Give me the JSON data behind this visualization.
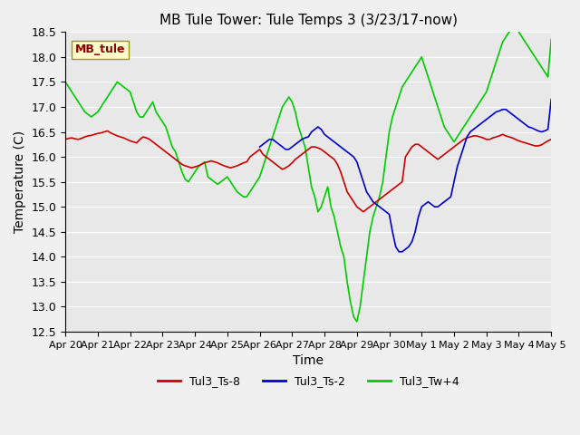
{
  "title": "MB Tule Tower: Tule Temps 3 (3/23/17-now)",
  "xlabel": "Time",
  "ylabel": "Temperature (C)",
  "ylim": [
    12.5,
    18.5
  ],
  "yticks": [
    12.5,
    13.0,
    13.5,
    14.0,
    14.5,
    15.0,
    15.5,
    16.0,
    16.5,
    17.0,
    17.5,
    18.0,
    18.5
  ],
  "xtick_labels": [
    "Apr 20",
    "Apr 21",
    "Apr 22",
    "Apr 23",
    "Apr 24",
    "Apr 25",
    "Apr 26",
    "Apr 27",
    "Apr 28",
    "Apr 29",
    "Apr 30",
    "May 1",
    "May 2",
    "May 3",
    "May 4",
    "May 5"
  ],
  "legend_label": "MB_tule",
  "background_color": "#e8e8e8",
  "plot_bg": "#e8e8e8",
  "line1_color": "#cc0000",
  "line2_color": "#0000cc",
  "line3_color": "#00cc00",
  "line1_label": "Tul3_Ts-8",
  "line2_label": "Tul3_Ts-2",
  "line3_label": "Tul3_Tw+4",
  "line1_x": [
    0,
    0.1,
    0.2,
    0.3,
    0.4,
    0.5,
    0.6,
    0.7,
    0.8,
    0.9,
    1.0,
    1.1,
    1.2,
    1.3,
    1.4,
    1.5,
    1.6,
    1.7,
    1.8,
    1.9,
    2.0,
    2.1,
    2.2,
    2.3,
    2.4,
    2.5,
    2.6,
    2.7,
    2.8,
    2.9,
    3.0,
    3.1,
    3.2,
    3.3,
    3.4,
    3.5,
    3.6,
    3.7,
    3.8,
    3.9,
    4.0,
    4.1,
    4.2,
    4.3,
    4.4,
    4.5,
    4.6,
    4.7,
    4.8,
    4.9,
    5.0,
    5.1,
    5.2,
    5.3,
    5.4,
    5.5,
    5.6,
    5.7,
    5.8,
    5.9,
    6.0,
    6.1,
    6.2,
    6.3,
    6.4,
    6.5,
    6.6,
    6.7,
    6.8,
    6.9,
    7.0,
    7.1,
    7.2,
    7.3,
    7.4,
    7.5,
    7.6,
    7.7,
    7.8,
    7.9,
    8.0,
    8.1,
    8.2,
    8.3,
    8.4,
    8.5,
    8.6,
    8.7,
    8.8,
    8.9,
    9.0,
    9.1,
    9.2,
    9.3,
    9.4,
    9.5,
    9.6,
    9.7,
    9.8,
    9.9,
    10.0,
    10.1,
    10.2,
    10.3,
    10.4,
    10.5,
    10.6,
    10.7,
    10.8,
    10.9,
    11.0,
    11.1,
    11.2,
    11.3,
    11.4,
    11.5,
    11.6,
    11.7,
    11.8,
    11.9,
    12.0,
    12.1,
    12.2,
    12.3,
    12.4,
    12.5,
    12.6,
    12.7,
    12.8,
    12.9,
    13.0,
    13.1,
    13.2,
    13.3,
    13.4,
    13.5,
    13.6,
    13.7,
    13.8,
    13.9,
    14.0,
    14.1,
    14.2,
    14.3,
    14.4,
    14.5,
    14.6,
    14.7,
    14.8,
    14.9,
    15.0
  ],
  "line1_y": [
    16.35,
    16.37,
    16.38,
    16.36,
    16.35,
    16.37,
    16.4,
    16.42,
    16.43,
    16.45,
    16.47,
    16.48,
    16.5,
    16.52,
    16.48,
    16.45,
    16.42,
    16.4,
    16.38,
    16.35,
    16.32,
    16.3,
    16.28,
    16.35,
    16.4,
    16.38,
    16.35,
    16.3,
    16.25,
    16.2,
    16.15,
    16.1,
    16.05,
    16.0,
    15.95,
    15.9,
    15.85,
    15.82,
    15.8,
    15.78,
    15.8,
    15.82,
    15.85,
    15.88,
    15.9,
    15.92,
    15.9,
    15.88,
    15.85,
    15.82,
    15.8,
    15.78,
    15.8,
    15.82,
    15.85,
    15.88,
    15.9,
    16.0,
    16.05,
    16.1,
    16.15,
    16.05,
    16.0,
    15.95,
    15.9,
    15.85,
    15.8,
    15.75,
    15.78,
    15.82,
    15.88,
    15.95,
    16.0,
    16.05,
    16.1,
    16.15,
    16.2,
    16.2,
    16.18,
    16.15,
    16.1,
    16.05,
    16.0,
    15.95,
    15.85,
    15.7,
    15.5,
    15.3,
    15.2,
    15.1,
    15.0,
    14.95,
    14.9,
    14.95,
    15.0,
    15.05,
    15.1,
    15.15,
    15.2,
    15.25,
    15.3,
    15.35,
    15.4,
    15.45,
    15.5,
    16.0,
    16.1,
    16.2,
    16.25,
    16.25,
    16.2,
    16.15,
    16.1,
    16.05,
    16.0,
    15.95,
    16.0,
    16.05,
    16.1,
    16.15,
    16.2,
    16.25,
    16.3,
    16.35,
    16.38,
    16.4,
    16.42,
    16.42,
    16.4,
    16.38,
    16.35,
    16.35,
    16.38,
    16.4,
    16.42,
    16.45,
    16.42,
    16.4,
    16.38,
    16.35,
    16.32,
    16.3,
    16.28,
    16.26,
    16.24,
    16.22,
    16.22,
    16.24,
    16.28,
    16.32,
    16.35
  ],
  "line2_x": [
    6.0,
    6.1,
    6.2,
    6.3,
    6.4,
    6.5,
    6.6,
    6.7,
    6.8,
    6.9,
    7.0,
    7.1,
    7.2,
    7.3,
    7.4,
    7.5,
    7.6,
    7.7,
    7.8,
    7.9,
    8.0,
    8.1,
    8.2,
    8.3,
    8.4,
    8.5,
    8.6,
    8.7,
    8.8,
    8.9,
    9.0,
    9.1,
    9.2,
    9.3,
    9.4,
    9.5,
    9.6,
    9.7,
    9.8,
    9.9,
    10.0,
    10.1,
    10.2,
    10.3,
    10.4,
    10.5,
    10.6,
    10.7,
    10.8,
    10.9,
    11.0,
    11.1,
    11.2,
    11.3,
    11.4,
    11.5,
    11.6,
    11.7,
    11.8,
    11.9,
    12.0,
    12.1,
    12.2,
    12.3,
    12.4,
    12.5,
    12.6,
    12.7,
    12.8,
    12.9,
    13.0,
    13.1,
    13.2,
    13.3,
    13.4,
    13.5,
    13.6,
    13.7,
    13.8,
    13.9,
    14.0,
    14.1,
    14.2,
    14.3,
    14.4,
    14.5,
    14.6,
    14.7,
    14.8,
    14.9,
    15.0
  ],
  "line2_y": [
    16.2,
    16.25,
    16.3,
    16.35,
    16.35,
    16.3,
    16.25,
    16.2,
    16.15,
    16.15,
    16.2,
    16.25,
    16.3,
    16.35,
    16.38,
    16.4,
    16.5,
    16.55,
    16.6,
    16.55,
    16.45,
    16.4,
    16.35,
    16.3,
    16.25,
    16.2,
    16.15,
    16.1,
    16.05,
    16.0,
    15.9,
    15.7,
    15.5,
    15.3,
    15.2,
    15.1,
    15.05,
    15.0,
    14.95,
    14.9,
    14.85,
    14.5,
    14.2,
    14.1,
    14.1,
    14.15,
    14.2,
    14.3,
    14.5,
    14.8,
    15.0,
    15.05,
    15.1,
    15.05,
    15.0,
    15.0,
    15.05,
    15.1,
    15.15,
    15.2,
    15.5,
    15.8,
    16.0,
    16.2,
    16.4,
    16.5,
    16.55,
    16.6,
    16.65,
    16.7,
    16.75,
    16.8,
    16.85,
    16.9,
    16.92,
    16.95,
    16.95,
    16.9,
    16.85,
    16.8,
    16.75,
    16.7,
    16.65,
    16.6,
    16.58,
    16.55,
    16.52,
    16.5,
    16.52,
    16.55,
    17.15
  ],
  "line3_x": [
    0,
    0.1,
    0.2,
    0.3,
    0.4,
    0.5,
    0.6,
    0.7,
    0.8,
    0.9,
    1.0,
    1.1,
    1.2,
    1.3,
    1.4,
    1.5,
    1.6,
    1.7,
    1.8,
    1.9,
    2.0,
    2.1,
    2.2,
    2.3,
    2.4,
    2.5,
    2.6,
    2.7,
    2.8,
    2.9,
    3.0,
    3.1,
    3.2,
    3.3,
    3.4,
    3.5,
    3.6,
    3.7,
    3.8,
    3.9,
    4.0,
    4.1,
    4.2,
    4.3,
    4.4,
    4.5,
    4.6,
    4.7,
    4.8,
    4.9,
    5.0,
    5.1,
    5.2,
    5.3,
    5.4,
    5.5,
    5.6,
    5.7,
    5.8,
    5.9,
    6.0,
    6.1,
    6.2,
    6.3,
    6.4,
    6.5,
    6.6,
    6.7,
    6.8,
    6.9,
    7.0,
    7.1,
    7.2,
    7.3,
    7.4,
    7.5,
    7.6,
    7.7,
    7.8,
    7.9,
    8.0,
    8.1,
    8.2,
    8.3,
    8.4,
    8.5,
    8.6,
    8.7,
    8.8,
    8.9,
    9.0,
    9.1,
    9.2,
    9.3,
    9.4,
    9.5,
    9.6,
    9.7,
    9.8,
    9.9,
    10.0,
    10.1,
    10.2,
    10.3,
    10.4,
    10.5,
    10.6,
    10.7,
    10.8,
    10.9,
    11.0,
    11.1,
    11.2,
    11.3,
    11.4,
    11.5,
    11.6,
    11.7,
    11.8,
    11.9,
    12.0,
    12.1,
    12.2,
    12.3,
    12.4,
    12.5,
    12.6,
    12.7,
    12.8,
    12.9,
    13.0,
    13.1,
    13.2,
    13.3,
    13.4,
    13.5,
    13.6,
    13.7,
    13.8,
    13.9,
    14.0,
    14.1,
    14.2,
    14.3,
    14.4,
    14.5,
    14.6,
    14.7,
    14.8,
    14.9,
    15.0
  ],
  "line3_y": [
    17.5,
    17.4,
    17.3,
    17.2,
    17.1,
    17.0,
    16.9,
    16.85,
    16.8,
    16.85,
    16.9,
    17.0,
    17.1,
    17.2,
    17.3,
    17.4,
    17.5,
    17.45,
    17.4,
    17.35,
    17.3,
    17.1,
    16.9,
    16.8,
    16.8,
    16.9,
    17.0,
    17.1,
    16.9,
    16.8,
    16.7,
    16.6,
    16.4,
    16.2,
    16.1,
    15.9,
    15.7,
    15.55,
    15.5,
    15.6,
    15.7,
    15.8,
    15.85,
    15.9,
    15.6,
    15.55,
    15.5,
    15.45,
    15.5,
    15.55,
    15.6,
    15.5,
    15.4,
    15.3,
    15.25,
    15.2,
    15.2,
    15.3,
    15.4,
    15.5,
    15.6,
    15.8,
    16.0,
    16.2,
    16.4,
    16.6,
    16.8,
    17.0,
    17.1,
    17.2,
    17.1,
    16.9,
    16.6,
    16.4,
    16.2,
    15.8,
    15.4,
    15.2,
    14.9,
    15.0,
    15.2,
    15.4,
    15.0,
    14.8,
    14.5,
    14.2,
    14.0,
    13.5,
    13.1,
    12.8,
    12.7,
    13.0,
    13.5,
    14.0,
    14.5,
    14.8,
    15.0,
    15.2,
    15.5,
    16.0,
    16.5,
    16.8,
    17.0,
    17.2,
    17.4,
    17.5,
    17.6,
    17.7,
    17.8,
    17.9,
    18.0,
    17.8,
    17.6,
    17.4,
    17.2,
    17.0,
    16.8,
    16.6,
    16.5,
    16.4,
    16.3,
    16.4,
    16.5,
    16.6,
    16.7,
    16.8,
    16.9,
    17.0,
    17.1,
    17.2,
    17.3,
    17.5,
    17.7,
    17.9,
    18.1,
    18.3,
    18.4,
    18.5,
    18.55,
    18.6,
    18.5,
    18.4,
    18.3,
    18.2,
    18.1,
    18.0,
    17.9,
    17.8,
    17.7,
    17.6,
    18.35
  ]
}
